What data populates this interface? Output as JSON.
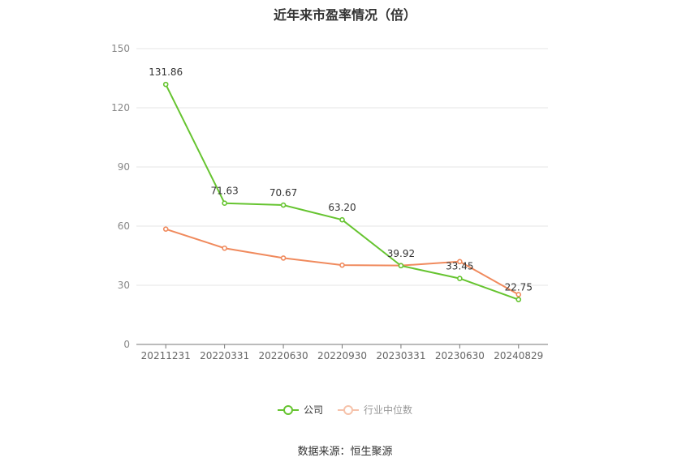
{
  "chart_data": {
    "type": "line",
    "title": "近年来市盈率情况（倍）",
    "categories": [
      "20211231",
      "20220331",
      "20220630",
      "20220930",
      "20230331",
      "20230630",
      "20240829"
    ],
    "ylim": [
      0,
      150
    ],
    "yticks": [
      0,
      30,
      60,
      90,
      120,
      150
    ],
    "grid": true,
    "legend_position": "bottom",
    "series": [
      {
        "name": "公司",
        "color": "#66c430",
        "values": [
          131.86,
          71.63,
          70.67,
          63.2,
          39.92,
          33.45,
          22.75
        ],
        "labels": [
          "131.86",
          "71.63",
          "70.67",
          "63.20",
          "39.92",
          "33.45",
          "22.75"
        ]
      },
      {
        "name": "行业中位数",
        "color": "#f08a5d",
        "values": [
          58.5,
          48.8,
          43.8,
          40.2,
          40.0,
          42.0,
          25.3
        ]
      }
    ]
  },
  "source_text": "数据来源：恒生聚源"
}
